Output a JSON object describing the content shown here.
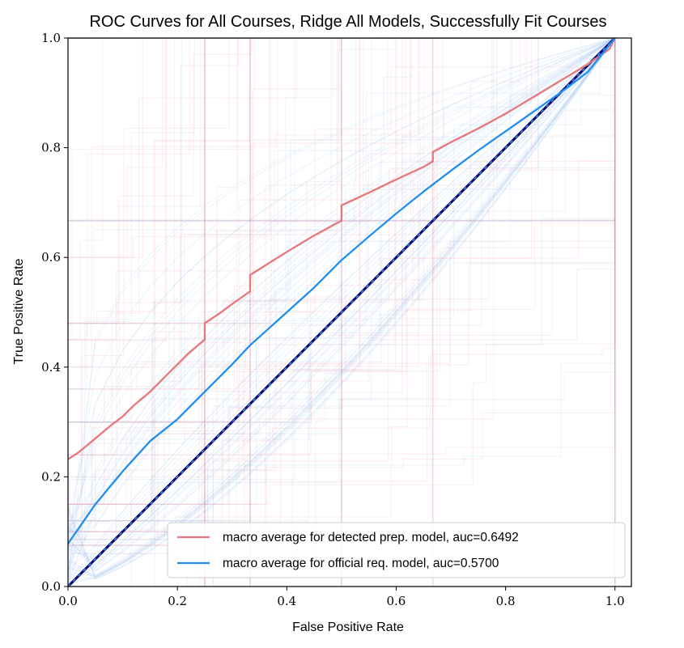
{
  "chart_data": {
    "type": "line",
    "title": "ROC Curves for All Courses, Ridge All Models, Successfully Fit Courses",
    "xlabel": "False Positive Rate",
    "ylabel": "True Positive Rate",
    "xlim": [
      0.0,
      1.03
    ],
    "ylim": [
      0.0,
      1.0
    ],
    "x_ticks": [
      "0.0",
      "0.2",
      "0.4",
      "0.6",
      "0.8",
      "1.0"
    ],
    "y_ticks": [
      "0.0",
      "0.2",
      "0.4",
      "0.6",
      "0.8",
      "1.0"
    ],
    "grid": false,
    "legend_position": "lower-right",
    "colors": {
      "detected": "#e8777b",
      "official": "#1e8ff0",
      "chance": "#00007a",
      "chance_dash": "#4aa6d8",
      "faint_detected": "#f4a8b0",
      "faint_official": "#a9c9f0"
    },
    "series": [
      {
        "name": "macro average for detected prep. model, auc=0.6492",
        "color": "#e8777b",
        "x": [
          0.0,
          0.02,
          0.05,
          0.08,
          0.1,
          0.12,
          0.15,
          0.18,
          0.2,
          0.22,
          0.25,
          0.25,
          0.28,
          0.3,
          0.333,
          0.333,
          0.36,
          0.4,
          0.45,
          0.5,
          0.5,
          0.55,
          0.6,
          0.65,
          0.667,
          0.667,
          0.7,
          0.75,
          0.8,
          0.85,
          0.9,
          0.95,
          0.99,
          1.0
        ],
        "y": [
          0.232,
          0.245,
          0.27,
          0.295,
          0.31,
          0.33,
          0.355,
          0.385,
          0.405,
          0.425,
          0.45,
          0.48,
          0.5,
          0.515,
          0.538,
          0.568,
          0.585,
          0.61,
          0.64,
          0.667,
          0.695,
          0.718,
          0.742,
          0.765,
          0.775,
          0.792,
          0.81,
          0.835,
          0.862,
          0.892,
          0.922,
          0.952,
          0.98,
          1.0
        ]
      },
      {
        "name": "macro average for official req. model, auc=0.5700",
        "color": "#1e8ff0",
        "x": [
          0.0,
          0.05,
          0.1,
          0.15,
          0.2,
          0.25,
          0.3,
          0.333,
          0.4,
          0.45,
          0.5,
          0.55,
          0.6,
          0.65,
          0.7,
          0.75,
          0.8,
          0.85,
          0.9,
          0.95,
          1.0
        ],
        "y": [
          0.078,
          0.15,
          0.21,
          0.265,
          0.305,
          0.355,
          0.405,
          0.44,
          0.5,
          0.545,
          0.595,
          0.638,
          0.68,
          0.72,
          0.758,
          0.795,
          0.83,
          0.865,
          0.9,
          0.938,
          1.0
        ]
      }
    ],
    "chance_line": {
      "x": [
        0.0,
        1.0
      ],
      "y": [
        0.0,
        1.0
      ]
    }
  }
}
